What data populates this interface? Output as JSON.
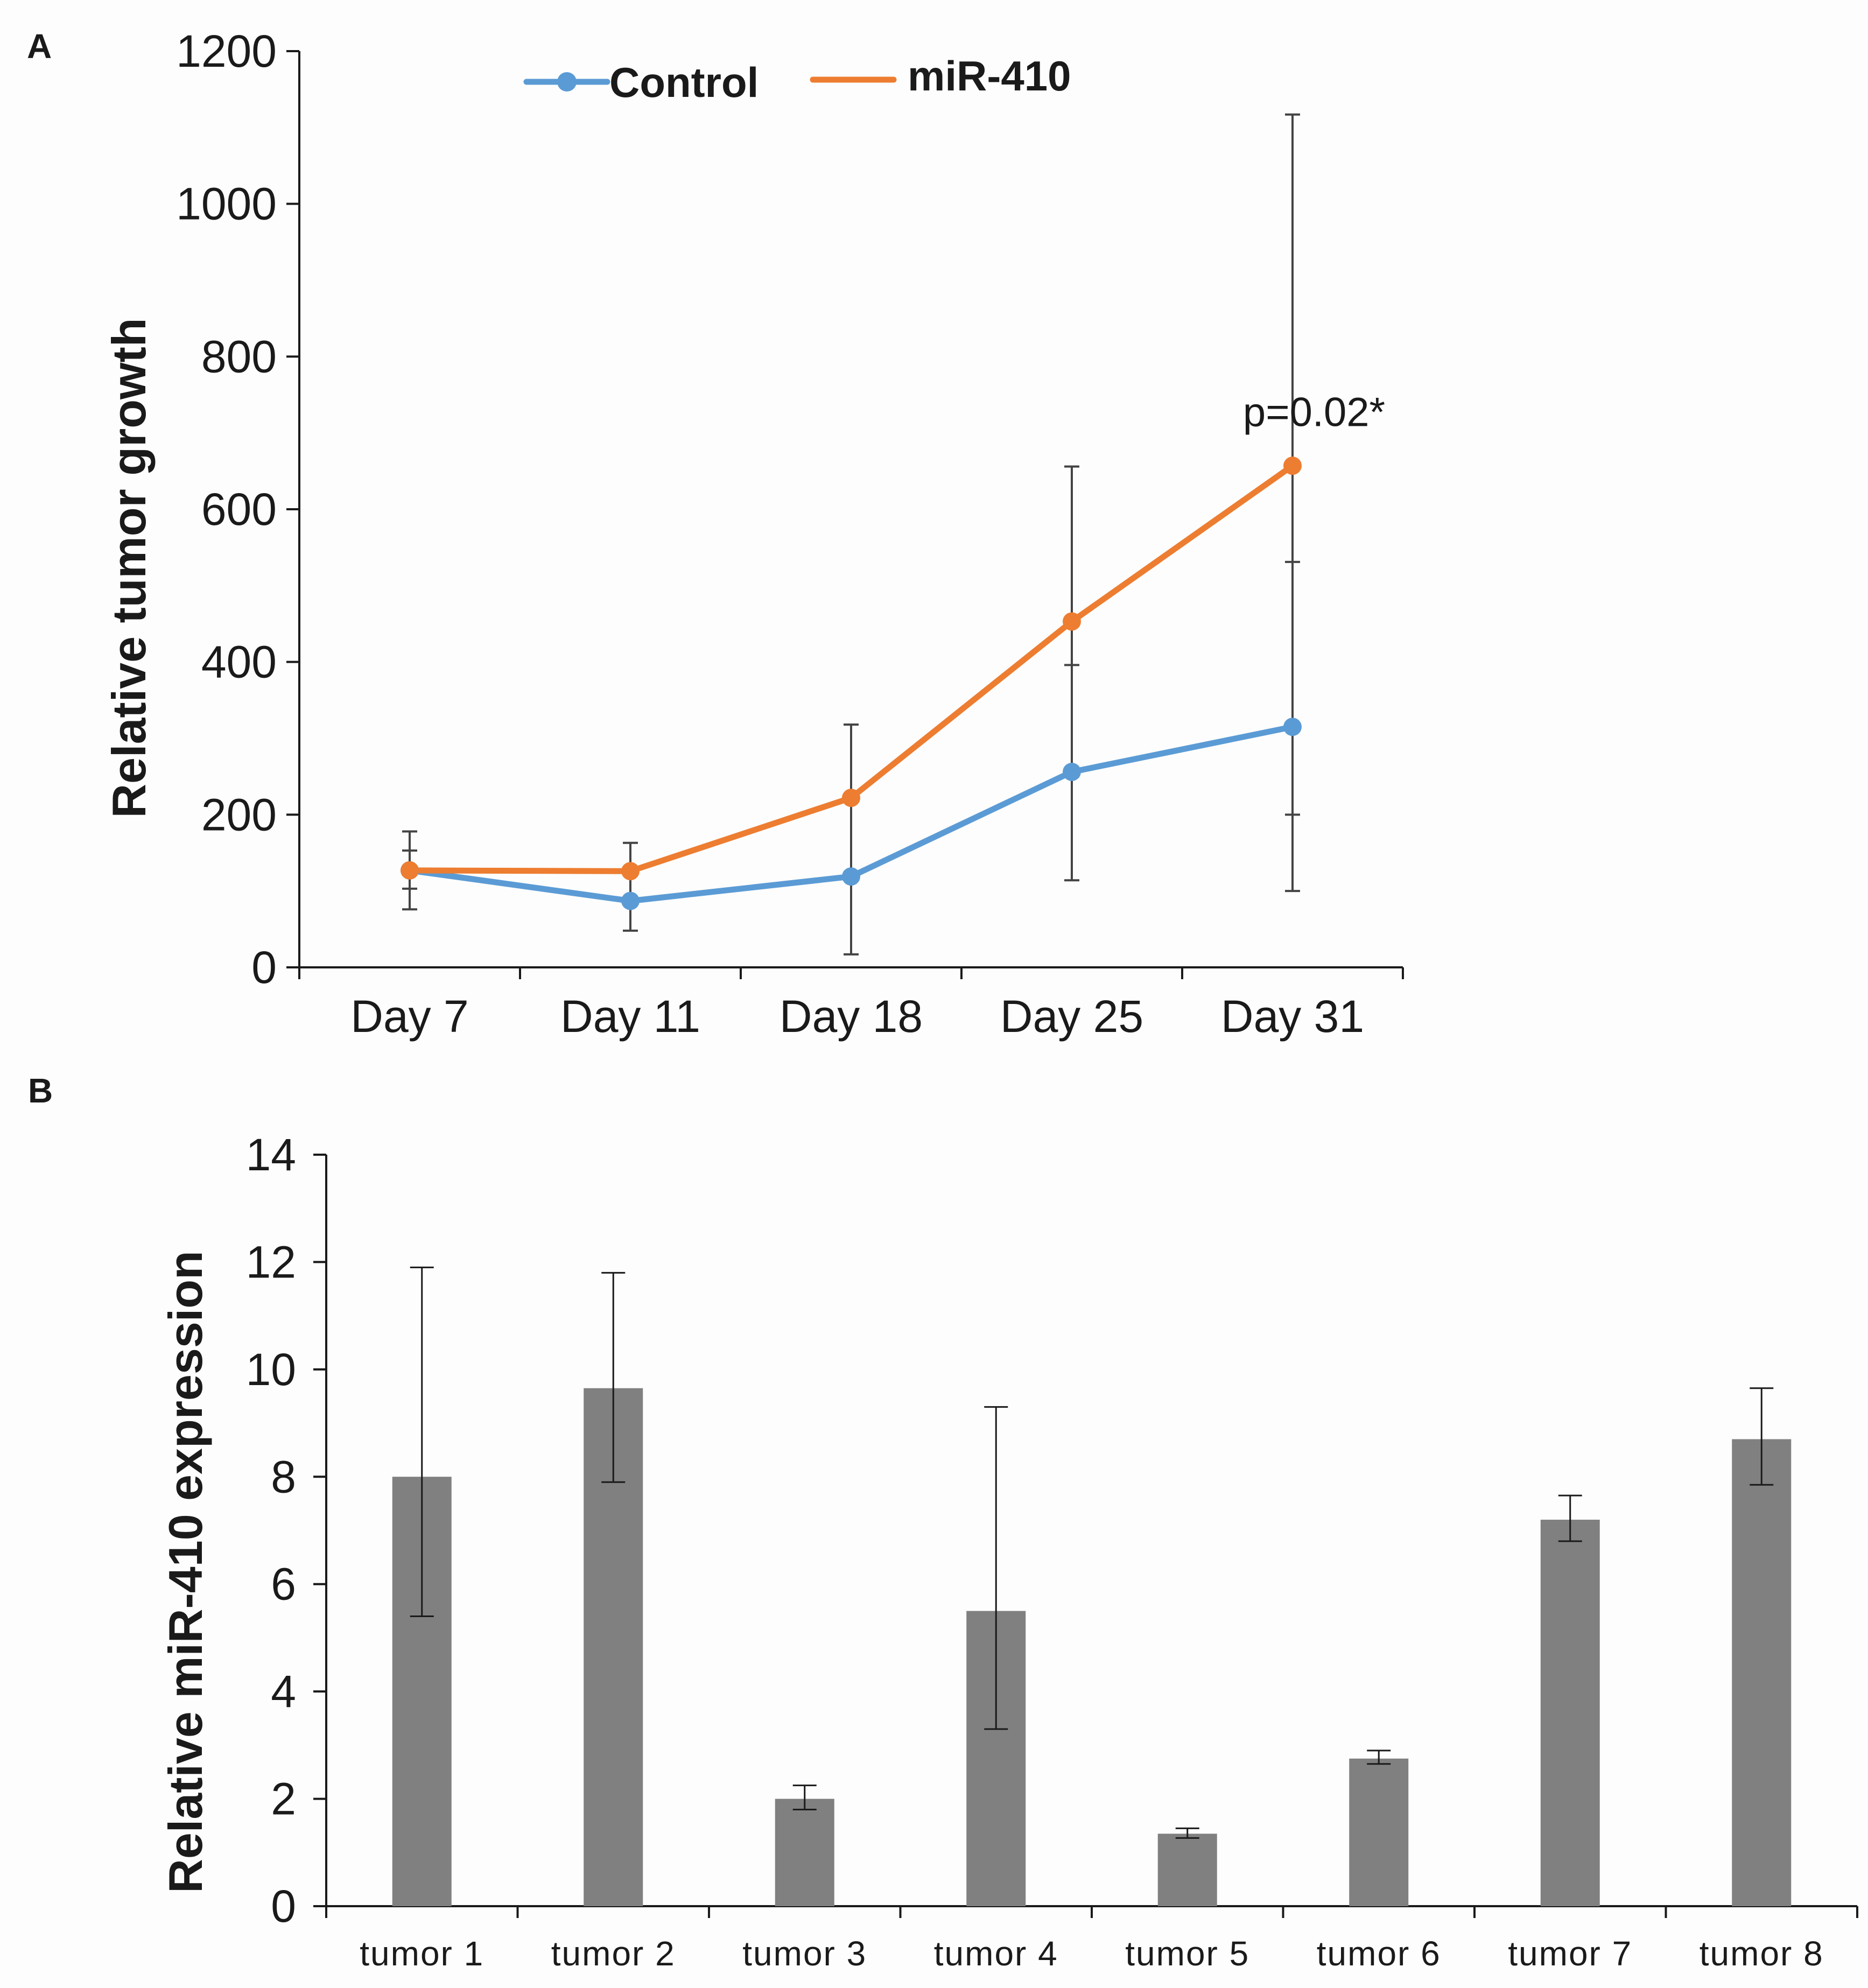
{
  "panels": {
    "a_label": "A",
    "b_label": "B"
  },
  "colors": {
    "control": "#5b9bd5",
    "mir410": "#ed7d31",
    "bar": "#808080",
    "axis": "#1a1a1a",
    "errorbar": "#444444"
  },
  "chart_data": [
    {
      "type": "line",
      "panel": "A",
      "title": "",
      "xlabel": "",
      "ylabel": "Relative tumor growth",
      "ylim": [
        0,
        1200
      ],
      "yticks": [
        0,
        200,
        400,
        600,
        800,
        1000,
        1200
      ],
      "categories": [
        "Day 7",
        "Day 11",
        "Day 18",
        "Day 25",
        "Day 31"
      ],
      "series": [
        {
          "name": "Control",
          "color": "#5b9bd5",
          "marker": "circle",
          "values": [
            127,
            87,
            119,
            256,
            315
          ],
          "err_low": [
            103,
            48,
            17,
            114,
            200
          ],
          "err_high": [
            153,
            126,
            220,
            396,
            531
          ]
        },
        {
          "name": "miR-410",
          "color": "#ed7d31",
          "marker": "circle",
          "values": [
            127,
            126,
            222,
            453,
            657
          ],
          "err_low": [
            76,
            88,
            125,
            250,
            100
          ],
          "err_high": [
            178,
            163,
            318,
            656,
            1117
          ]
        }
      ],
      "legend": {
        "position": "top-center",
        "entries": [
          "Control",
          "miR-410"
        ]
      },
      "annotations": [
        {
          "text": "p=0.02*",
          "category": "Day 31",
          "value": 730
        }
      ],
      "grid": false
    },
    {
      "type": "bar",
      "panel": "B",
      "title": "",
      "xlabel": "",
      "ylabel": "Relative miR-410 expression",
      "ylim": [
        0,
        14
      ],
      "yticks": [
        0,
        2,
        4,
        6,
        8,
        10,
        12,
        14
      ],
      "categories": [
        "tumor 1",
        "tumor 2",
        "tumor 3",
        "tumor 4",
        "tumor 5",
        "tumor 6",
        "tumor 7",
        "tumor 8"
      ],
      "values": [
        8.0,
        9.65,
        2.0,
        5.5,
        1.35,
        2.75,
        7.2,
        8.7
      ],
      "err_low": [
        5.4,
        7.9,
        1.8,
        3.3,
        1.27,
        2.65,
        6.8,
        7.85
      ],
      "err_high": [
        11.9,
        11.8,
        2.25,
        9.3,
        1.45,
        2.9,
        7.65,
        9.65
      ],
      "grid": false
    }
  ]
}
